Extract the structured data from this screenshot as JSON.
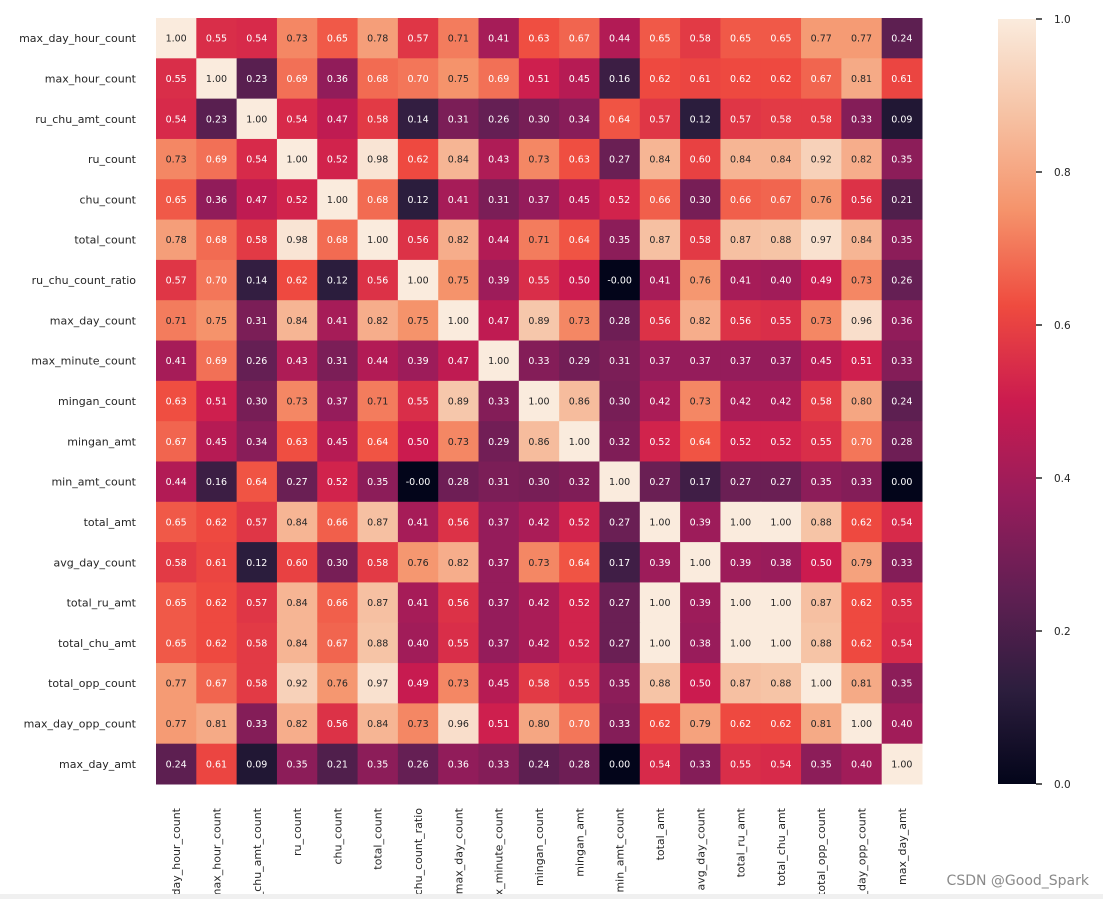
{
  "chart_data": {
    "type": "heatmap",
    "title": "",
    "labels": [
      "max_day_hour_count",
      "max_hour_count",
      "ru_chu_amt_count",
      "ru_count",
      "chu_count",
      "total_count",
      "ru_chu_count_ratio",
      "max_day_count",
      "max_minute_count",
      "mingan_count",
      "mingan_amt",
      "min_amt_count",
      "total_amt",
      "avg_day_count",
      "total_ru_amt",
      "total_chu_amt",
      "total_opp_count",
      "max_day_opp_count",
      "max_day_amt"
    ],
    "x_tick_labels": [
      "_day_hour_count",
      "max_hour_count",
      "_chu_amt_count",
      "ru_count",
      "chu_count",
      "total_count",
      "_chu_count_ratio",
      "max_day_count",
      "ax_minute_count",
      "mingan_count",
      "mingan_amt",
      "min_amt_count",
      "total_amt",
      "avg_day_count",
      "total_ru_amt",
      "total_chu_amt",
      "total_opp_count",
      "_day_opp_count",
      "max_day_amt"
    ],
    "matrix": [
      [
        1.0,
        0.55,
        0.54,
        0.73,
        0.65,
        0.78,
        0.57,
        0.71,
        0.41,
        0.63,
        0.67,
        0.44,
        0.65,
        0.58,
        0.65,
        0.65,
        0.77,
        0.77,
        0.24
      ],
      [
        0.55,
        1.0,
        0.23,
        0.69,
        0.36,
        0.68,
        0.7,
        0.75,
        0.69,
        0.51,
        0.45,
        0.16,
        0.62,
        0.61,
        0.62,
        0.62,
        0.67,
        0.81,
        0.61
      ],
      [
        0.54,
        0.23,
        1.0,
        0.54,
        0.47,
        0.58,
        0.14,
        0.31,
        0.26,
        0.3,
        0.34,
        0.64,
        0.57,
        0.12,
        0.57,
        0.58,
        0.58,
        0.33,
        0.09
      ],
      [
        0.73,
        0.69,
        0.54,
        1.0,
        0.52,
        0.98,
        0.62,
        0.84,
        0.43,
        0.73,
        0.63,
        0.27,
        0.84,
        0.6,
        0.84,
        0.84,
        0.92,
        0.82,
        0.35
      ],
      [
        0.65,
        0.36,
        0.47,
        0.52,
        1.0,
        0.68,
        0.12,
        0.41,
        0.31,
        0.37,
        0.45,
        0.52,
        0.66,
        0.3,
        0.66,
        0.67,
        0.76,
        0.56,
        0.21
      ],
      [
        0.78,
        0.68,
        0.58,
        0.98,
        0.68,
        1.0,
        0.56,
        0.82,
        0.44,
        0.71,
        0.64,
        0.35,
        0.87,
        0.58,
        0.87,
        0.88,
        0.97,
        0.84,
        0.35
      ],
      [
        0.57,
        0.7,
        0.14,
        0.62,
        0.12,
        0.56,
        1.0,
        0.75,
        0.39,
        0.55,
        0.5,
        -0.0,
        0.41,
        0.76,
        0.41,
        0.4,
        0.49,
        0.73,
        0.26
      ],
      [
        0.71,
        0.75,
        0.31,
        0.84,
        0.41,
        0.82,
        0.75,
        1.0,
        0.47,
        0.89,
        0.73,
        0.28,
        0.56,
        0.82,
        0.56,
        0.55,
        0.73,
        0.96,
        0.36
      ],
      [
        0.41,
        0.69,
        0.26,
        0.43,
        0.31,
        0.44,
        0.39,
        0.47,
        1.0,
        0.33,
        0.29,
        0.31,
        0.37,
        0.37,
        0.37,
        0.37,
        0.45,
        0.51,
        0.33
      ],
      [
        0.63,
        0.51,
        0.3,
        0.73,
        0.37,
        0.71,
        0.55,
        0.89,
        0.33,
        1.0,
        0.86,
        0.3,
        0.42,
        0.73,
        0.42,
        0.42,
        0.58,
        0.8,
        0.24
      ],
      [
        0.67,
        0.45,
        0.34,
        0.63,
        0.45,
        0.64,
        0.5,
        0.73,
        0.29,
        0.86,
        1.0,
        0.32,
        0.52,
        0.64,
        0.52,
        0.52,
        0.55,
        0.7,
        0.28
      ],
      [
        0.44,
        0.16,
        0.64,
        0.27,
        0.52,
        0.35,
        -0.0,
        0.28,
        0.31,
        0.3,
        0.32,
        1.0,
        0.27,
        0.17,
        0.27,
        0.27,
        0.35,
        0.33,
        0.0
      ],
      [
        0.65,
        0.62,
        0.57,
        0.84,
        0.66,
        0.87,
        0.41,
        0.56,
        0.37,
        0.42,
        0.52,
        0.27,
        1.0,
        0.39,
        1.0,
        1.0,
        0.88,
        0.62,
        0.54
      ],
      [
        0.58,
        0.61,
        0.12,
        0.6,
        0.3,
        0.58,
        0.76,
        0.82,
        0.37,
        0.73,
        0.64,
        0.17,
        0.39,
        1.0,
        0.39,
        0.38,
        0.5,
        0.79,
        0.33
      ],
      [
        0.65,
        0.62,
        0.57,
        0.84,
        0.66,
        0.87,
        0.41,
        0.56,
        0.37,
        0.42,
        0.52,
        0.27,
        1.0,
        0.39,
        1.0,
        1.0,
        0.87,
        0.62,
        0.55
      ],
      [
        0.65,
        0.62,
        0.58,
        0.84,
        0.67,
        0.88,
        0.4,
        0.55,
        0.37,
        0.42,
        0.52,
        0.27,
        1.0,
        0.38,
        1.0,
        1.0,
        0.88,
        0.62,
        0.54
      ],
      [
        0.77,
        0.67,
        0.58,
        0.92,
        0.76,
        0.97,
        0.49,
        0.73,
        0.45,
        0.58,
        0.55,
        0.35,
        0.88,
        0.5,
        0.87,
        0.88,
        1.0,
        0.81,
        0.35
      ],
      [
        0.77,
        0.81,
        0.33,
        0.82,
        0.56,
        0.84,
        0.73,
        0.96,
        0.51,
        0.8,
        0.7,
        0.33,
        0.62,
        0.79,
        0.62,
        0.62,
        0.81,
        1.0,
        0.4
      ],
      [
        0.24,
        0.61,
        0.09,
        0.35,
        0.21,
        0.35,
        0.26,
        0.36,
        0.33,
        0.24,
        0.28,
        0.0,
        0.54,
        0.33,
        0.55,
        0.54,
        0.35,
        0.4,
        1.0
      ]
    ],
    "cell_text": [
      [
        "1.00",
        "0.55",
        "0.54",
        "0.73",
        "0.65",
        "0.78",
        "0.57",
        "0.71",
        "0.41",
        "0.63",
        "0.67",
        "0.44",
        "0.65",
        "0.58",
        "0.65",
        "0.65",
        "0.77",
        "0.77",
        "0.24"
      ],
      [
        "0.55",
        "1.00",
        "0.23",
        "0.69",
        "0.36",
        "0.68",
        "0.70",
        "0.75",
        "0.69",
        "0.51",
        "0.45",
        "0.16",
        "0.62",
        "0.61",
        "0.62",
        "0.62",
        "0.67",
        "0.81",
        "0.61"
      ],
      [
        "0.54",
        "0.23",
        "1.00",
        "0.54",
        "0.47",
        "0.58",
        "0.14",
        "0.31",
        "0.26",
        "0.30",
        "0.34",
        "0.64",
        "0.57",
        "0.12",
        "0.57",
        "0.58",
        "0.58",
        "0.33",
        "0.09"
      ],
      [
        "0.73",
        "0.69",
        "0.54",
        "1.00",
        "0.52",
        "0.98",
        "0.62",
        "0.84",
        "0.43",
        "0.73",
        "0.63",
        "0.27",
        "0.84",
        "0.60",
        "0.84",
        "0.84",
        "0.92",
        "0.82",
        "0.35"
      ],
      [
        "0.65",
        "0.36",
        "0.47",
        "0.52",
        "1.00",
        "0.68",
        "0.12",
        "0.41",
        "0.31",
        "0.37",
        "0.45",
        "0.52",
        "0.66",
        "0.30",
        "0.66",
        "0.67",
        "0.76",
        "0.56",
        "0.21"
      ],
      [
        "0.78",
        "0.68",
        "0.58",
        "0.98",
        "0.68",
        "1.00",
        "0.56",
        "0.82",
        "0.44",
        "0.71",
        "0.64",
        "0.35",
        "0.87",
        "0.58",
        "0.87",
        "0.88",
        "0.97",
        "0.84",
        "0.35"
      ],
      [
        "0.57",
        "0.70",
        "0.14",
        "0.62",
        "0.12",
        "0.56",
        "1.00",
        "0.75",
        "0.39",
        "0.55",
        "0.50",
        "-0.00",
        "0.41",
        "0.76",
        "0.41",
        "0.40",
        "0.49",
        "0.73",
        "0.26"
      ],
      [
        "0.71",
        "0.75",
        "0.31",
        "0.84",
        "0.41",
        "0.82",
        "0.75",
        "1.00",
        "0.47",
        "0.89",
        "0.73",
        "0.28",
        "0.56",
        "0.82",
        "0.56",
        "0.55",
        "0.73",
        "0.96",
        "0.36"
      ],
      [
        "0.41",
        "0.69",
        "0.26",
        "0.43",
        "0.31",
        "0.44",
        "0.39",
        "0.47",
        "1.00",
        "0.33",
        "0.29",
        "0.31",
        "0.37",
        "0.37",
        "0.37",
        "0.37",
        "0.45",
        "0.51",
        "0.33"
      ],
      [
        "0.63",
        "0.51",
        "0.30",
        "0.73",
        "0.37",
        "0.71",
        "0.55",
        "0.89",
        "0.33",
        "1.00",
        "0.86",
        "0.30",
        "0.42",
        "0.73",
        "0.42",
        "0.42",
        "0.58",
        "0.80",
        "0.24"
      ],
      [
        "0.67",
        "0.45",
        "0.34",
        "0.63",
        "0.45",
        "0.64",
        "0.50",
        "0.73",
        "0.29",
        "0.86",
        "1.00",
        "0.32",
        "0.52",
        "0.64",
        "0.52",
        "0.52",
        "0.55",
        "0.70",
        "0.28"
      ],
      [
        "0.44",
        "0.16",
        "0.64",
        "0.27",
        "0.52",
        "0.35",
        "-0.00",
        "0.28",
        "0.31",
        "0.30",
        "0.32",
        "1.00",
        "0.27",
        "0.17",
        "0.27",
        "0.27",
        "0.35",
        "0.33",
        "0.00"
      ],
      [
        "0.65",
        "0.62",
        "0.57",
        "0.84",
        "0.66",
        "0.87",
        "0.41",
        "0.56",
        "0.37",
        "0.42",
        "0.52",
        "0.27",
        "1.00",
        "0.39",
        "1.00",
        "1.00",
        "0.88",
        "0.62",
        "0.54"
      ],
      [
        "0.58",
        "0.61",
        "0.12",
        "0.60",
        "0.30",
        "0.58",
        "0.76",
        "0.82",
        "0.37",
        "0.73",
        "0.64",
        "0.17",
        "0.39",
        "1.00",
        "0.39",
        "0.38",
        "0.50",
        "0.79",
        "0.33"
      ],
      [
        "0.65",
        "0.62",
        "0.57",
        "0.84",
        "0.66",
        "0.87",
        "0.41",
        "0.56",
        "0.37",
        "0.42",
        "0.52",
        "0.27",
        "1.00",
        "0.39",
        "1.00",
        "1.00",
        "0.87",
        "0.62",
        "0.55"
      ],
      [
        "0.65",
        "0.62",
        "0.58",
        "0.84",
        "0.67",
        "0.88",
        "0.40",
        "0.55",
        "0.37",
        "0.42",
        "0.52",
        "0.27",
        "1.00",
        "0.38",
        "1.00",
        "1.00",
        "0.88",
        "0.62",
        "0.54"
      ],
      [
        "0.77",
        "0.67",
        "0.58",
        "0.92",
        "0.76",
        "0.97",
        "0.49",
        "0.73",
        "0.45",
        "0.58",
        "0.55",
        "0.35",
        "0.88",
        "0.50",
        "0.87",
        "0.88",
        "1.00",
        "0.81",
        "0.35"
      ],
      [
        "0.77",
        "0.81",
        "0.33",
        "0.82",
        "0.56",
        "0.84",
        "0.73",
        "0.96",
        "0.51",
        "0.80",
        "0.70",
        "0.33",
        "0.62",
        "0.79",
        "0.62",
        "0.62",
        "0.81",
        "1.00",
        "0.40"
      ],
      [
        "0.24",
        "0.61",
        "0.09",
        "0.35",
        "0.21",
        "0.35",
        "0.26",
        "0.36",
        "0.33",
        "0.24",
        "0.28",
        "0.00",
        "0.54",
        "0.33",
        "0.55",
        "0.54",
        "0.35",
        "0.40",
        "1.00"
      ]
    ],
    "colormap": "rocket",
    "vmin": 0.0,
    "vmax": 1.0,
    "colorbar_ticks": [
      "0.0",
      "0.2",
      "0.4",
      "0.6",
      "0.8",
      "1.0"
    ],
    "colorbar_tick_values": [
      0.0,
      0.2,
      0.4,
      0.6,
      0.8,
      1.0
    ],
    "annotate": true,
    "fmt": ".2f"
  },
  "colors": {
    "text": "#262626",
    "cmap_stops": [
      "#03051a",
      "#2d1e3e",
      "#611f53",
      "#971c5b",
      "#cb1b4f",
      "#ef4b3f",
      "#f5936b",
      "#f6c2a4",
      "#faebdd"
    ]
  },
  "watermark": "CSDN @Good_Spark"
}
